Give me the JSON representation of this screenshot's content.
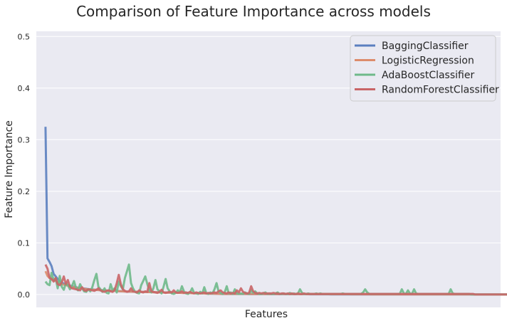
{
  "chart_data": {
    "type": "line",
    "title": "Comparison of Feature Importance across models",
    "xlabel": "Features",
    "ylabel": "Feature Importance",
    "ylim": [
      -0.025,
      0.51
    ],
    "yticks": [
      0.0,
      0.1,
      0.2,
      0.3,
      0.4,
      0.5
    ],
    "ytick_labels": [
      "0.0",
      "0.1",
      "0.2",
      "0.3",
      "0.4",
      "0.5"
    ],
    "xlim": [
      -4.5,
      223.5
    ],
    "grid": true,
    "legend_position": "top-right",
    "series": [
      {
        "name": "BaggingClassifier",
        "color": "#5b7fbf",
        "values": [
          0.325,
          0.07,
          0.063,
          0.055,
          0.04,
          0.035,
          0.03,
          0.026,
          0.023,
          0.021,
          0.019,
          0.018,
          0.017,
          0.016,
          0.015,
          0.014,
          0.013,
          0.0125,
          0.012,
          0.0115,
          0.011,
          0.0105,
          0.01,
          0.0097,
          0.0094,
          0.0091,
          0.0088,
          0.0085,
          0.0082,
          0.008,
          0.0078,
          0.0076,
          0.0074,
          0.0072,
          0.007,
          0.0068,
          0.0066,
          0.0064,
          0.0062,
          0.006,
          0.0058,
          0.0057,
          0.0056,
          0.0055,
          0.0054,
          0.0053,
          0.0052,
          0.0051,
          0.005,
          0.0049,
          0.0048,
          0.0047,
          0.0046,
          0.0045,
          0.0044,
          0.0043,
          0.0042,
          0.0041,
          0.004,
          0.0039,
          0.0038,
          0.0037,
          0.0036,
          0.0035,
          0.0034,
          0.0033,
          0.0032,
          0.0031,
          0.003,
          0.0029,
          0.0028,
          0.0027,
          0.0026,
          0.0025,
          0.0024,
          0.0023,
          0.0022,
          0.0021,
          0.002,
          0.0019,
          0.0018,
          0.0017,
          0.0016,
          0.0015,
          0.0014,
          0.0013,
          0.0012,
          0.0011,
          0.001,
          0.001,
          0.001,
          0.001,
          0.001,
          0.001,
          0.001,
          0.001,
          0.001,
          0.001,
          0.001,
          0.001,
          0.0008,
          0.0008,
          0.0008,
          0.0008,
          0.0008,
          0.0008,
          0.0008,
          0.0008,
          0.0008,
          0.0008,
          0.0006,
          0.0006,
          0.0006,
          0.0006,
          0.0006,
          0.0006,
          0.0006,
          0.0006,
          0.0006,
          0.0006,
          0.0005,
          0.0005,
          0.0005,
          0.0005,
          0.0005,
          0.0005,
          0.0005,
          0.0005,
          0.0005,
          0.0005,
          0.0004,
          0.0004,
          0.0004,
          0.0004,
          0.0004,
          0.0004,
          0.0004,
          0.0004,
          0.0004,
          0.0004,
          0.0003,
          0.0003,
          0.0003,
          0.0003,
          0.0003,
          0.0003,
          0.0003,
          0.0003,
          0.0003,
          0.0003,
          0.0002,
          0.0002,
          0.0002,
          0.0002,
          0.0002,
          0.0002,
          0.0002,
          0.0002,
          0.0002,
          0.0002,
          0.0002,
          0.0002,
          0.0002,
          0.0002,
          0.0002,
          0.0002,
          0.0002,
          0.0002,
          0.0002,
          0.0002,
          0.0001,
          0.0001,
          0.0001,
          0.0001,
          0.0001,
          0.0001,
          0.0001,
          0.0001,
          0.0001,
          0.0001,
          0.0001,
          0.0001,
          0.0001,
          0.0001,
          0.0001,
          0.0001,
          0.0001,
          0.0001,
          0.0001,
          0.0001,
          0.0001,
          0.0001,
          0.0001,
          0.0001,
          0.0001,
          0.0001,
          0.0001,
          0.0001,
          0.0001,
          0.0001,
          0.0001,
          0.0001,
          0.0001,
          0.0001,
          0.0001,
          0.0001,
          0.0001,
          0.0001,
          0.0001,
          0.0001,
          0.0,
          0.0,
          0.0,
          0.0,
          0.0,
          0.0,
          0.0,
          0.0,
          0.0,
          0.0,
          0.0,
          0.0,
          0.0,
          0.0,
          0.0,
          0.0,
          0.0,
          0.0,
          0.0,
          0.0
        ]
      },
      {
        "name": "LogisticRegression",
        "color": "#dd8c6c",
        "values": [
          0.045,
          0.036,
          0.032,
          0.03,
          0.028,
          0.026,
          0.024,
          0.022,
          0.02,
          0.019,
          0.018,
          0.017,
          0.016,
          0.015,
          0.014,
          0.013,
          0.0125,
          0.012,
          0.0115,
          0.011,
          0.0105,
          0.01,
          0.0097,
          0.0094,
          0.0091,
          0.0088,
          0.0085,
          0.0082,
          0.008,
          0.0078,
          0.0076,
          0.0074,
          0.0072,
          0.007,
          0.0068,
          0.0066,
          0.0064,
          0.0062,
          0.006,
          0.0058,
          0.0057,
          0.0056,
          0.0055,
          0.0054,
          0.0053,
          0.0052,
          0.0051,
          0.005,
          0.0049,
          0.0048,
          0.0047,
          0.0046,
          0.0045,
          0.0044,
          0.0043,
          0.0042,
          0.0041,
          0.004,
          0.0039,
          0.0038,
          0.0037,
          0.0036,
          0.0035,
          0.0034,
          0.0033,
          0.0032,
          0.0031,
          0.003,
          0.0029,
          0.0028,
          0.0027,
          0.0026,
          0.0025,
          0.0024,
          0.0023,
          0.0022,
          0.0021,
          0.002,
          0.0019,
          0.0018,
          0.0017,
          0.0016,
          0.0015,
          0.0014,
          0.0013,
          0.0012,
          0.0011,
          0.001,
          0.001,
          0.001,
          0.001,
          0.001,
          0.001,
          0.001,
          0.001,
          0.001,
          0.001,
          0.001,
          0.001,
          0.001,
          0.0009,
          0.0009,
          0.0009,
          0.0009,
          0.0009,
          0.0009,
          0.0009,
          0.0009,
          0.0009,
          0.0009,
          0.0008,
          0.0008,
          0.0008,
          0.0008,
          0.0008,
          0.0008,
          0.0008,
          0.0008,
          0.0008,
          0.0008,
          0.0007,
          0.0007,
          0.0007,
          0.0007,
          0.0007,
          0.0007,
          0.0007,
          0.0007,
          0.0007,
          0.0007,
          0.0006,
          0.0006,
          0.0006,
          0.0006,
          0.0006,
          0.0006,
          0.0006,
          0.0006,
          0.0006,
          0.0006,
          0.0005,
          0.0005,
          0.0005,
          0.0005,
          0.0005,
          0.0005,
          0.0005,
          0.0005,
          0.0005,
          0.0005,
          0.0004,
          0.0004,
          0.0004,
          0.0004,
          0.0004,
          0.0004,
          0.0004,
          0.0004,
          0.0004,
          0.0004,
          0.0003,
          0.0003,
          0.0003,
          0.0003,
          0.0003,
          0.0003,
          0.0003,
          0.0003,
          0.0003,
          0.0003,
          0.0002,
          0.0002,
          0.0002,
          0.0002,
          0.0002,
          0.0002,
          0.0002,
          0.0002,
          0.0002,
          0.0002,
          0.0002,
          0.0002,
          0.0002,
          0.0002,
          0.0002,
          0.0002,
          0.0002,
          0.0002,
          0.0002,
          0.0002,
          0.0001,
          0.0001,
          0.0001,
          0.0001,
          0.0001,
          0.0001,
          0.0001,
          0.0001,
          0.0001,
          0.0001,
          0.0001,
          0.0001,
          0.0001,
          0.0001,
          0.0001,
          0.0001,
          0.0001,
          0.0001,
          0.0001,
          0.0001,
          0.0,
          0.0,
          0.0,
          0.0,
          0.0,
          0.0,
          0.0,
          0.0,
          0.0,
          0.0,
          0.0,
          0.0,
          0.0,
          0.0,
          0.0,
          0.0,
          0.0,
          0.0,
          0.0,
          0.0
        ]
      },
      {
        "name": "AdaBoostClassifier",
        "color": "#6fb98a",
        "values": [
          0.025,
          0.02,
          0.018,
          0.042,
          0.028,
          0.032,
          0.012,
          0.036,
          0.015,
          0.009,
          0.022,
          0.018,
          0.01,
          0.016,
          0.026,
          0.012,
          0.008,
          0.02,
          0.012,
          0.006,
          0.005,
          0.01,
          0.006,
          0.014,
          0.028,
          0.04,
          0.015,
          0.01,
          0.005,
          0.012,
          0.003,
          0.002,
          0.02,
          0.008,
          0.012,
          0.004,
          0.025,
          0.016,
          0.01,
          0.032,
          0.045,
          0.058,
          0.022,
          0.012,
          0.005,
          0.003,
          0.002,
          0.018,
          0.026,
          0.035,
          0.02,
          0.008,
          0.004,
          0.012,
          0.028,
          0.01,
          0.006,
          0.002,
          0.015,
          0.03,
          0.012,
          0.006,
          0.002,
          0.001,
          0.003,
          0.008,
          0.004,
          0.016,
          0.006,
          0.002,
          0.001,
          0.004,
          0.012,
          0.003,
          0.002,
          0.001,
          0.005,
          0.002,
          0.014,
          0.002,
          0.001,
          0.004,
          0.002,
          0.01,
          0.022,
          0.006,
          0.003,
          0.001,
          0.004,
          0.016,
          0.002,
          0.004,
          0.001,
          0.01,
          0.002,
          0.001,
          0.002,
          0.001,
          0.004,
          0.002,
          0.001,
          0.008,
          0.003,
          0.006,
          0.002,
          0.001,
          0.001,
          0.002,
          0.004,
          0.001,
          0.002,
          0.001,
          0.001,
          0.002,
          0.004,
          0.001,
          0.001,
          0.002,
          0.001,
          0.001,
          0.003,
          0.001,
          0.002,
          0.001,
          0.002,
          0.01,
          0.003,
          0.001,
          0.001,
          0.002,
          0.001,
          0.001,
          0.001,
          0.002,
          0.001,
          0.002,
          0.001,
          0.001,
          0.001,
          0.001,
          0.001,
          0.001,
          0.001,
          0.001,
          0.001,
          0.001,
          0.002,
          0.001,
          0.001,
          0.001,
          0.001,
          0.001,
          0.001,
          0.001,
          0.001,
          0.001,
          0.004,
          0.01,
          0.004,
          0.001,
          0.001,
          0.001,
          0.001,
          0.001,
          0.001,
          0.001,
          0.001,
          0.001,
          0.001,
          0.001,
          0.001,
          0.001,
          0.001,
          0.001,
          0.001,
          0.01,
          0.002,
          0.001,
          0.008,
          0.002,
          0.001,
          0.01,
          0.002,
          0.001,
          0.001,
          0.001,
          0.001,
          0.001,
          0.001,
          0.001,
          0.001,
          0.001,
          0.001,
          0.001,
          0.001,
          0.001,
          0.001,
          0.001,
          0.001,
          0.01,
          0.002,
          0.001,
          0.001,
          0.001,
          0.001,
          0.001,
          0.001,
          0.001,
          0.001,
          0.0,
          0.0,
          0.0,
          0.0,
          0.0,
          0.0,
          0.0,
          0.0,
          0.0,
          0.0,
          0.0,
          0.0,
          0.0,
          0.0,
          0.0,
          0.0,
          0.0,
          0.0,
          0.0,
          0.0
        ]
      },
      {
        "name": "RandomForestClassifier",
        "color": "#c96567",
        "values": [
          0.058,
          0.05,
          0.032,
          0.03,
          0.025,
          0.032,
          0.02,
          0.018,
          0.023,
          0.035,
          0.02,
          0.028,
          0.015,
          0.012,
          0.011,
          0.01,
          0.009,
          0.008,
          0.014,
          0.008,
          0.007,
          0.01,
          0.009,
          0.008,
          0.007,
          0.009,
          0.012,
          0.008,
          0.006,
          0.005,
          0.007,
          0.008,
          0.006,
          0.005,
          0.009,
          0.022,
          0.038,
          0.02,
          0.01,
          0.007,
          0.005,
          0.006,
          0.012,
          0.006,
          0.005,
          0.004,
          0.008,
          0.005,
          0.004,
          0.006,
          0.005,
          0.022,
          0.006,
          0.005,
          0.004,
          0.003,
          0.005,
          0.009,
          0.004,
          0.003,
          0.004,
          0.005,
          0.004,
          0.008,
          0.004,
          0.003,
          0.004,
          0.006,
          0.003,
          0.004,
          0.003,
          0.005,
          0.003,
          0.002,
          0.004,
          0.003,
          0.002,
          0.003,
          0.004,
          0.002,
          0.003,
          0.002,
          0.003,
          0.004,
          0.003,
          0.006,
          0.008,
          0.004,
          0.003,
          0.002,
          0.004,
          0.002,
          0.003,
          0.002,
          0.008,
          0.004,
          0.012,
          0.005,
          0.003,
          0.002,
          0.003,
          0.016,
          0.006,
          0.003,
          0.002,
          0.003,
          0.002,
          0.003,
          0.002,
          0.002,
          0.002,
          0.002,
          0.003,
          0.002,
          0.002,
          0.001,
          0.002,
          0.002,
          0.001,
          0.002,
          0.001,
          0.002,
          0.001,
          0.001,
          0.002,
          0.001,
          0.001,
          0.002,
          0.001,
          0.001,
          0.001,
          0.001,
          0.001,
          0.001,
          0.001,
          0.001,
          0.001,
          0.001,
          0.001,
          0.001,
          0.001,
          0.001,
          0.001,
          0.001,
          0.001,
          0.001,
          0.001,
          0.001,
          0.001,
          0.001,
          0.001,
          0.001,
          0.001,
          0.001,
          0.001,
          0.001,
          0.001,
          0.001,
          0.001,
          0.001,
          0.001,
          0.001,
          0.001,
          0.001,
          0.001,
          0.001,
          0.001,
          0.001,
          0.001,
          0.001,
          0.001,
          0.001,
          0.001,
          0.001,
          0.001,
          0.001,
          0.001,
          0.001,
          0.001,
          0.001,
          0.001,
          0.001,
          0.001,
          0.001,
          0.001,
          0.001,
          0.001,
          0.001,
          0.001,
          0.001,
          0.001,
          0.001,
          0.001,
          0.001,
          0.001,
          0.001,
          0.001,
          0.001,
          0.001,
          0.001,
          0.001,
          0.001,
          0.001,
          0.001,
          0.001,
          0.001,
          0.001,
          0.001,
          0.001,
          0.001,
          0.001,
          0.0,
          0.0,
          0.0,
          0.0,
          0.0,
          0.0,
          0.0,
          0.0,
          0.0,
          0.0,
          0.0,
          0.0,
          0.0,
          0.0,
          0.0,
          0.0,
          0.0,
          0.0,
          0.0,
          0.0
        ]
      }
    ]
  }
}
